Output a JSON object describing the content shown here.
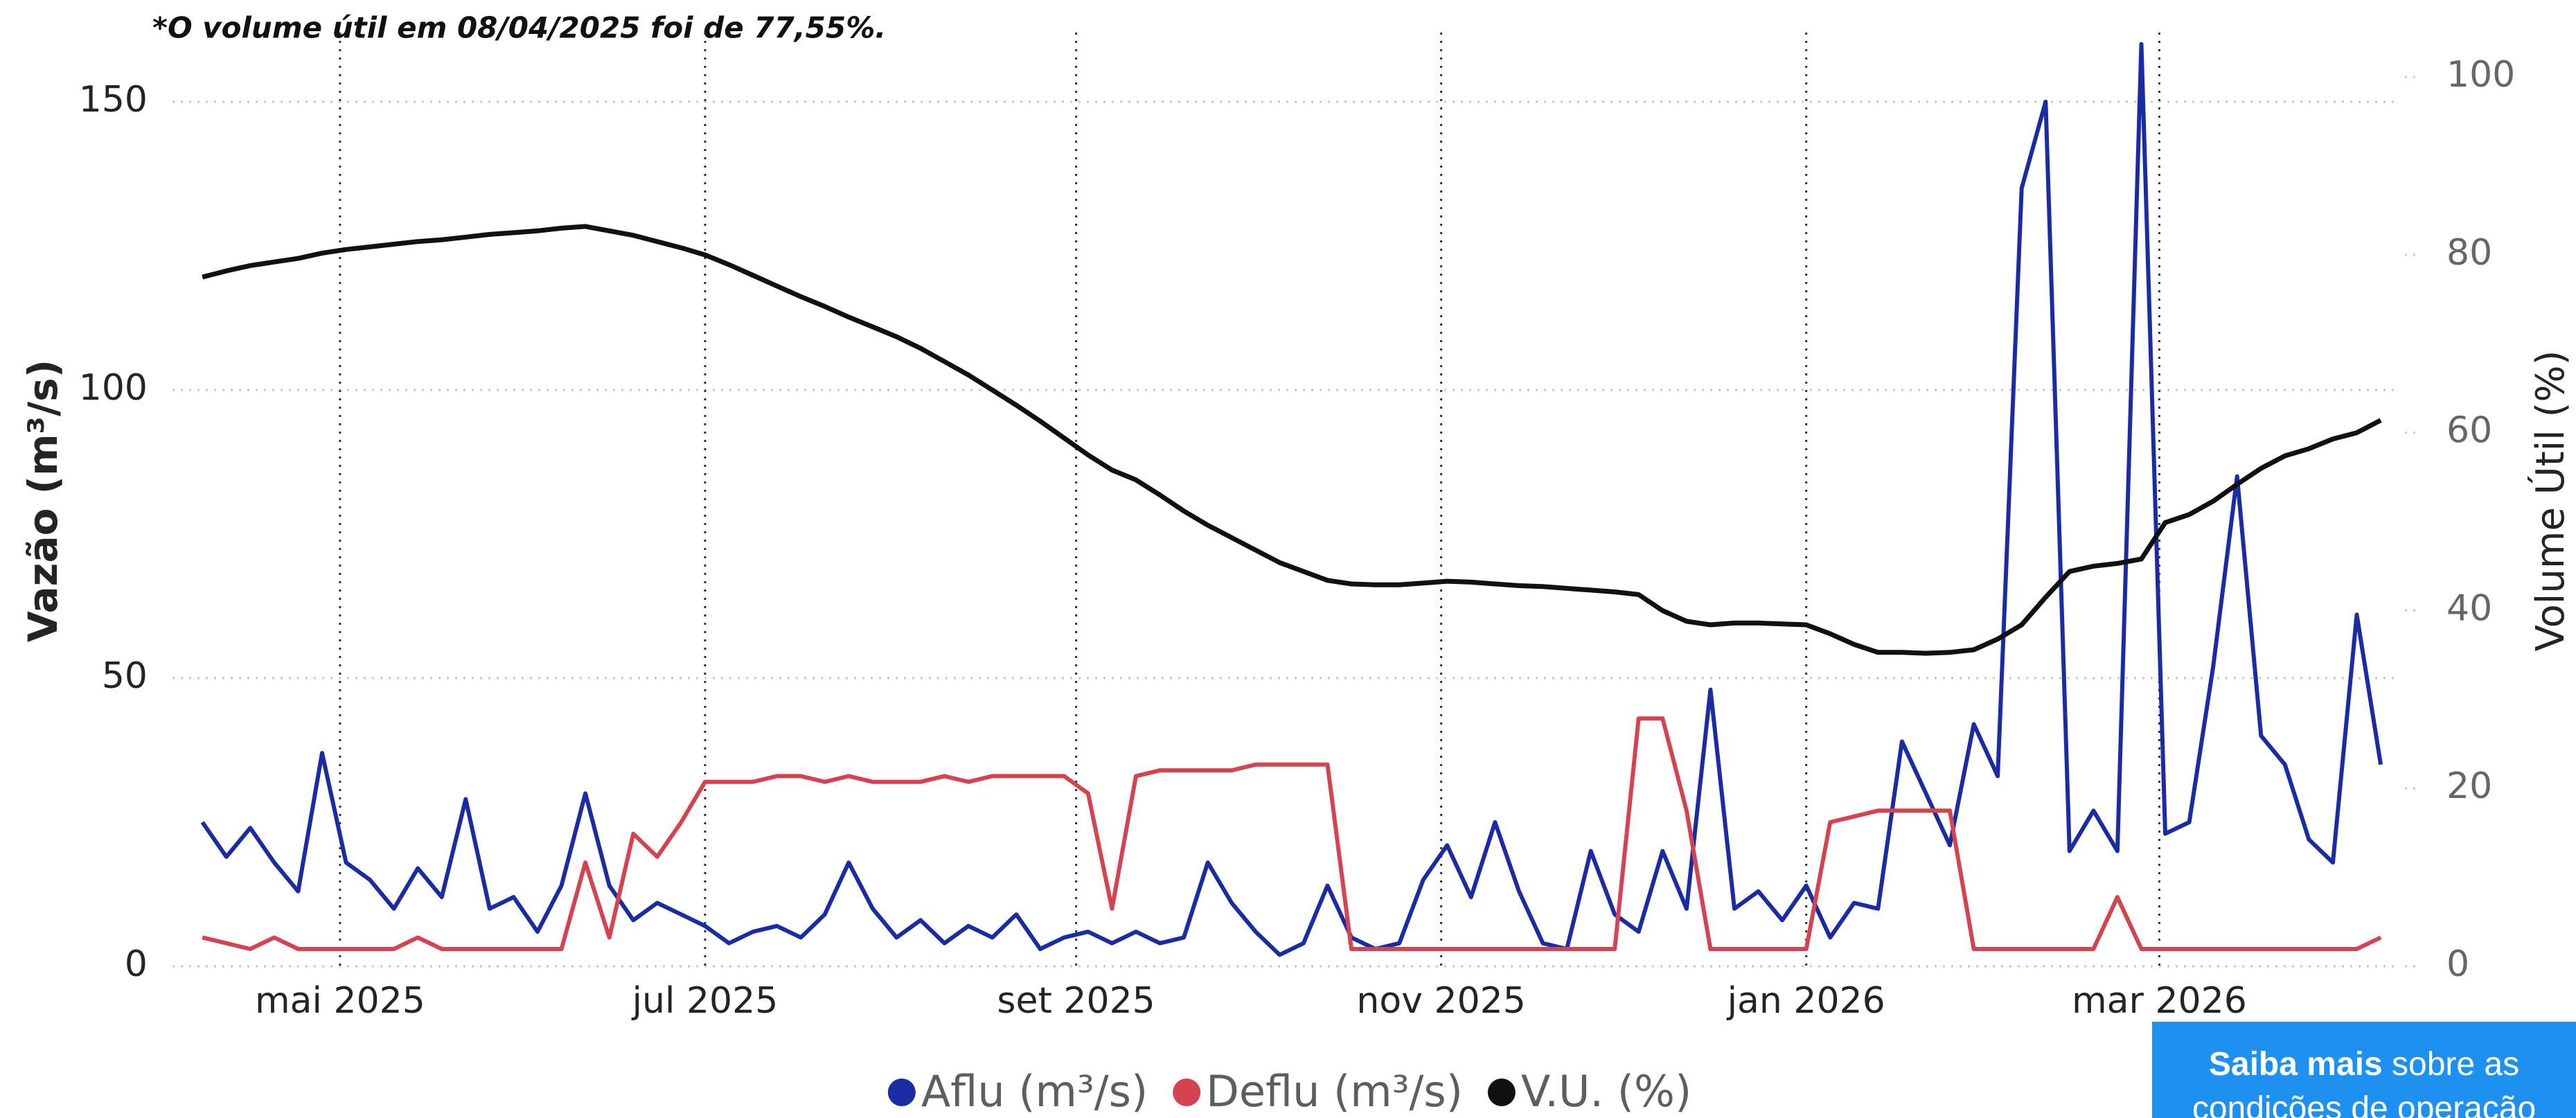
{
  "chart_data": {
    "type": "line",
    "annotation": "*O volume útil em 08/04/2025 foi de 77,55%.",
    "y_label": "Vazão (m³/s)",
    "y2_label": "Volume Útil (%)",
    "x": [
      "2025-04-08",
      "2025-04-12",
      "2025-04-16",
      "2025-04-20",
      "2025-04-24",
      "2025-04-28",
      "2025-05-02",
      "2025-05-06",
      "2025-05-10",
      "2025-05-14",
      "2025-05-18",
      "2025-05-22",
      "2025-05-26",
      "2025-05-30",
      "2025-06-03",
      "2025-06-07",
      "2025-06-11",
      "2025-06-15",
      "2025-06-19",
      "2025-06-23",
      "2025-06-27",
      "2025-07-01",
      "2025-07-05",
      "2025-07-09",
      "2025-07-13",
      "2025-07-17",
      "2025-07-21",
      "2025-07-25",
      "2025-07-29",
      "2025-08-02",
      "2025-08-06",
      "2025-08-10",
      "2025-08-14",
      "2025-08-18",
      "2025-08-22",
      "2025-08-26",
      "2025-08-30",
      "2025-09-03",
      "2025-09-07",
      "2025-09-11",
      "2025-09-15",
      "2025-09-19",
      "2025-09-23",
      "2025-09-27",
      "2025-10-01",
      "2025-10-05",
      "2025-10-09",
      "2025-10-13",
      "2025-10-17",
      "2025-10-21",
      "2025-10-25",
      "2025-10-29",
      "2025-11-02",
      "2025-11-06",
      "2025-11-10",
      "2025-11-14",
      "2025-11-18",
      "2025-11-22",
      "2025-11-26",
      "2025-11-30",
      "2025-12-04",
      "2025-12-08",
      "2025-12-12",
      "2025-12-16",
      "2025-12-20",
      "2025-12-24",
      "2025-12-28",
      "2026-01-01",
      "2026-01-05",
      "2026-01-09",
      "2026-01-13",
      "2026-01-17",
      "2026-01-21",
      "2026-01-25",
      "2026-01-29",
      "2026-02-02",
      "2026-02-06",
      "2026-02-10",
      "2026-02-14",
      "2026-02-18",
      "2026-02-22",
      "2026-02-26",
      "2026-03-02",
      "2026-03-06",
      "2026-03-10",
      "2026-03-14",
      "2026-03-18",
      "2026-03-22",
      "2026-03-26",
      "2026-03-30",
      "2026-04-03",
      "2026-04-07"
    ],
    "xlim": [
      "2025-04-03",
      "2026-04-10"
    ],
    "xticks": [
      {
        "value": "2025-05-01",
        "label": "mai 2025"
      },
      {
        "value": "2025-07-01",
        "label": "jul 2025"
      },
      {
        "value": "2025-09-01",
        "label": "set 2025"
      },
      {
        "value": "2025-11-01",
        "label": "nov 2025"
      },
      {
        "value": "2026-01-01",
        "label": "jan 2026"
      },
      {
        "value": "2026-03-01",
        "label": "mar 2026"
      }
    ],
    "ylim": [
      0,
      162
    ],
    "yticks": [
      0,
      50,
      100,
      150
    ],
    "y2lim": [
      0,
      105
    ],
    "y2ticks": [
      0,
      20,
      40,
      60,
      80,
      100
    ],
    "grid": true,
    "series": [
      {
        "name": "Aflu (m³/s)",
        "color": "#1b2ba3",
        "values": [
          25,
          19,
          24,
          18,
          13,
          37,
          18,
          15,
          10,
          17,
          12,
          29,
          10,
          12,
          6,
          14,
          30,
          14,
          8,
          11,
          9,
          7,
          4,
          6,
          7,
          5,
          9,
          18,
          10,
          5,
          8,
          4,
          7,
          5,
          9,
          3,
          5,
          6,
          4,
          6,
          4,
          5,
          18,
          11,
          6,
          2,
          4,
          14,
          5,
          3,
          4,
          15,
          21,
          12,
          25,
          13,
          4,
          3,
          20,
          9,
          6,
          20,
          10,
          48,
          10,
          13,
          8,
          14,
          5,
          11,
          10,
          39,
          30,
          21,
          42,
          33,
          135,
          150,
          20,
          27,
          20,
          160,
          23,
          25,
          52,
          85,
          40,
          35,
          22,
          18,
          61,
          35
        ]
      },
      {
        "name": "Deflu (m³/s)",
        "color": "#d4434f",
        "values": [
          5,
          4,
          3,
          5,
          3,
          3,
          3,
          3,
          3,
          5,
          3,
          3,
          3,
          3,
          3,
          3,
          18,
          5,
          23,
          19,
          25,
          32,
          32,
          32,
          33,
          33,
          32,
          33,
          32,
          32,
          32,
          33,
          32,
          33,
          33,
          33,
          33,
          30,
          10,
          33,
          34,
          34,
          34,
          34,
          35,
          35,
          35,
          35,
          3,
          3,
          3,
          3,
          3,
          3,
          3,
          3,
          3,
          3,
          3,
          3,
          43,
          43,
          27,
          3,
          3,
          3,
          3,
          3,
          25,
          26,
          27,
          27,
          27,
          27,
          3,
          3,
          3,
          3,
          3,
          3,
          12,
          3,
          3,
          3,
          3,
          3,
          3,
          3,
          3,
          3,
          3,
          5
        ]
      },
      {
        "name": "V.U. (%)",
        "color": "#111111",
        "axis": "y2",
        "values": [
          77.5,
          78.2,
          78.8,
          79.2,
          79.6,
          80.2,
          80.6,
          80.9,
          81.2,
          81.5,
          81.7,
          82.0,
          82.3,
          82.5,
          82.7,
          83.0,
          83.2,
          82.7,
          82.2,
          81.5,
          80.8,
          80.0,
          78.9,
          77.7,
          76.5,
          75.3,
          74.2,
          73.0,
          71.9,
          70.8,
          69.5,
          68.0,
          66.5,
          64.8,
          63.1,
          61.3,
          59.4,
          57.5,
          55.8,
          54.7,
          53.0,
          51.2,
          49.6,
          48.2,
          46.8,
          45.4,
          44.4,
          43.4,
          43.0,
          42.9,
          42.9,
          43.1,
          43.3,
          43.2,
          43.0,
          42.8,
          42.7,
          42.5,
          42.3,
          42.1,
          41.8,
          40.0,
          38.8,
          38.4,
          38.6,
          38.6,
          38.5,
          38.4,
          37.4,
          36.2,
          35.3,
          35.3,
          35.2,
          35.3,
          35.6,
          36.8,
          38.4,
          41.5,
          44.4,
          45.0,
          45.3,
          45.8,
          49.9,
          50.8,
          52.3,
          54.2,
          56.0,
          57.4,
          58.2,
          59.3,
          60.0,
          61.4
        ]
      }
    ],
    "button": {
      "strong": "Saiba mais",
      "text": "sobre as condições de operação"
    }
  }
}
